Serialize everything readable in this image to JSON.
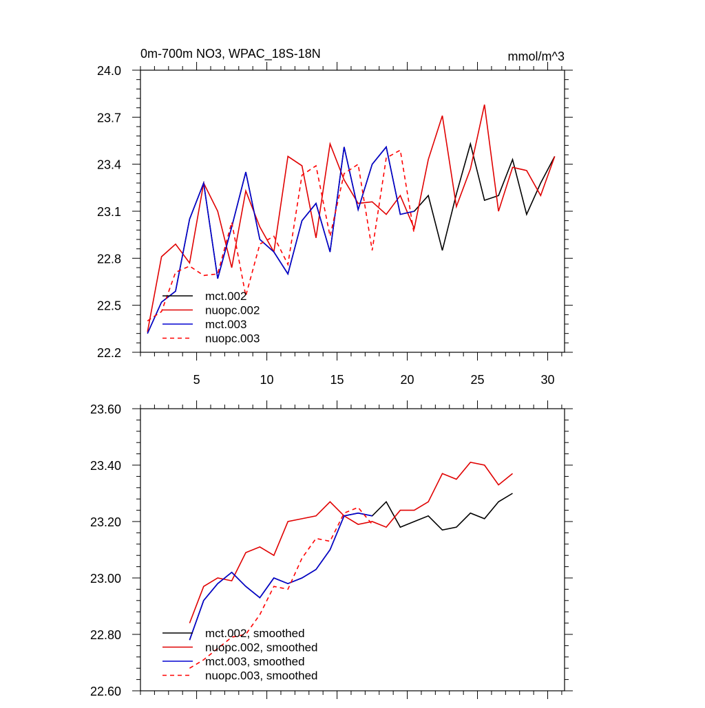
{
  "colors": {
    "mct002": "#000000",
    "nuopc002": "#e00000",
    "mct003": "#0000d0",
    "nuopc003": "#ff0000"
  },
  "chart_data": [
    {
      "type": "line",
      "title_left": "0m-700m NO3, WPAC_18S-18N",
      "title_right": "mmol/m^3",
      "xlabel": "",
      "ylabel": "",
      "xlim": [
        1,
        31.2
      ],
      "ylim": [
        22.2,
        24.0
      ],
      "x_ticks": [
        5,
        10,
        15,
        20,
        25,
        30
      ],
      "x_tick_labels": [
        "5",
        "10",
        "15",
        "20",
        "25",
        "30"
      ],
      "y_ticks": [
        22.2,
        22.5,
        22.8,
        23.1,
        23.4,
        23.7,
        24.0
      ],
      "y_tick_labels": [
        "22.2",
        "22.5",
        "22.8",
        "23.1",
        "23.4",
        "23.7",
        "24.0"
      ],
      "x_minor_step": 1,
      "y_minor_step": 0.06,
      "legend_position": "bottom-left",
      "series": [
        {
          "name": "mct.002",
          "color_key": "mct002",
          "dash": "solid",
          "x": [
            1.5,
            2.5,
            3.5,
            4.5,
            5.5,
            6.5,
            7.5,
            8.5,
            9.5,
            10.5,
            11.5,
            12.5,
            13.5,
            14.5,
            15.5,
            16.5,
            17.5,
            18.5,
            19.5,
            20.5,
            21.5,
            22.5,
            23.5,
            24.5,
            25.5,
            26.5,
            27.5,
            28.5,
            29.5,
            30.5
          ],
          "values": [
            22.32,
            22.52,
            22.59,
            23.05,
            23.28,
            22.67,
            23.0,
            23.35,
            22.92,
            22.84,
            22.7,
            23.04,
            23.15,
            22.84,
            23.51,
            23.11,
            23.4,
            23.51,
            23.08,
            23.1,
            23.2,
            22.85,
            23.21,
            23.53,
            23.17,
            23.2,
            23.43,
            23.08,
            23.28,
            23.45
          ]
        },
        {
          "name": "nuopc.002",
          "color_key": "nuopc002",
          "dash": "solid",
          "x": [
            1.5,
            2.5,
            3.5,
            4.5,
            5.5,
            6.5,
            7.5,
            8.5,
            9.5,
            10.5,
            11.5,
            12.5,
            13.5,
            14.5,
            15.5,
            16.5,
            17.5,
            18.5,
            19.5,
            20.5,
            21.5,
            22.5,
            23.5,
            24.5,
            25.5,
            26.5,
            27.5,
            28.5,
            29.5,
            30.5
          ],
          "values": [
            22.33,
            22.81,
            22.89,
            22.77,
            23.28,
            23.1,
            22.74,
            23.23,
            23.0,
            22.84,
            23.45,
            23.39,
            22.93,
            23.53,
            23.3,
            23.15,
            23.16,
            23.08,
            23.2,
            22.99,
            23.43,
            23.71,
            23.13,
            23.37,
            23.78,
            23.1,
            23.38,
            23.36,
            23.2,
            23.45
          ]
        },
        {
          "name": "mct.003",
          "color_key": "mct003",
          "dash": "solid",
          "x": [
            1.5,
            2.5,
            3.5,
            4.5,
            5.5,
            6.5,
            7.5,
            8.5,
            9.5,
            10.5,
            11.5,
            12.5,
            13.5,
            14.5,
            15.5,
            16.5,
            17.5,
            18.5,
            19.5,
            20.5
          ],
          "values": [
            22.32,
            22.52,
            22.59,
            23.05,
            23.28,
            22.67,
            23.0,
            23.35,
            22.92,
            22.84,
            22.7,
            23.04,
            23.15,
            22.84,
            23.51,
            23.11,
            23.4,
            23.51,
            23.08,
            23.1
          ]
        },
        {
          "name": "nuopc.003",
          "color_key": "nuopc003",
          "dash": "dashed",
          "x": [
            1.5,
            2.5,
            3.5,
            4.5,
            5.5,
            6.5,
            7.5,
            8.5,
            9.5,
            10.5,
            11.5,
            12.5,
            13.5,
            14.5,
            15.5,
            16.5,
            17.5,
            18.5,
            19.5,
            20.5
          ],
          "values": [
            22.4,
            22.46,
            22.71,
            22.75,
            22.69,
            22.7,
            23.03,
            22.56,
            22.89,
            22.94,
            22.76,
            23.33,
            23.39,
            22.94,
            23.34,
            23.4,
            22.85,
            23.44,
            23.49,
            22.95
          ]
        }
      ]
    },
    {
      "type": "line",
      "title_left": "",
      "title_right": "",
      "xlabel": "",
      "ylabel": "",
      "xlim": [
        1,
        31.2
      ],
      "ylim": [
        22.6,
        23.6
      ],
      "x_ticks": [
        5,
        10,
        15,
        20,
        25,
        30
      ],
      "x_tick_labels": [],
      "y_ticks": [
        22.6,
        22.8,
        23.0,
        23.2,
        23.4,
        23.6
      ],
      "y_tick_labels": [
        "22.60",
        "22.80",
        "23.00",
        "23.20",
        "23.40",
        "23.60"
      ],
      "x_minor_step": 1,
      "y_minor_step": 0.04,
      "legend_position": "bottom-left",
      "series": [
        {
          "name": "mct.002, smoothed",
          "color_key": "mct002",
          "dash": "solid",
          "x": [
            4.5,
            5.5,
            6.5,
            7.5,
            8.5,
            9.5,
            10.5,
            11.5,
            12.5,
            13.5,
            14.5,
            15.5,
            16.5,
            17.5,
            18.5,
            19.5,
            20.5,
            21.5,
            22.5,
            23.5,
            24.5,
            25.5,
            26.5,
            27.5
          ],
          "values": [
            22.78,
            22.92,
            22.98,
            23.02,
            22.97,
            22.93,
            23.0,
            22.98,
            23.0,
            23.03,
            23.1,
            23.22,
            23.23,
            23.22,
            23.27,
            23.18,
            23.2,
            23.22,
            23.17,
            23.18,
            23.23,
            23.21,
            23.27,
            23.3
          ]
        },
        {
          "name": "nuopc.002, smoothed",
          "color_key": "nuopc002",
          "dash": "solid",
          "x": [
            4.5,
            5.5,
            6.5,
            7.5,
            8.5,
            9.5,
            10.5,
            11.5,
            12.5,
            13.5,
            14.5,
            15.5,
            16.5,
            17.5,
            18.5,
            19.5,
            20.5,
            21.5,
            22.5,
            23.5,
            24.5,
            25.5,
            26.5,
            27.5
          ],
          "values": [
            22.84,
            22.97,
            23.0,
            22.99,
            23.09,
            23.11,
            23.08,
            23.2,
            23.21,
            23.22,
            23.27,
            23.22,
            23.19,
            23.2,
            23.18,
            23.24,
            23.24,
            23.27,
            23.37,
            23.35,
            23.41,
            23.4,
            23.33,
            23.37
          ]
        },
        {
          "name": "mct.003, smoothed",
          "color_key": "mct003",
          "dash": "solid",
          "x": [
            4.5,
            5.5,
            6.5,
            7.5,
            8.5,
            9.5,
            10.5,
            11.5,
            12.5,
            13.5,
            14.5,
            15.5,
            16.5,
            17.5
          ],
          "values": [
            22.78,
            22.92,
            22.98,
            23.02,
            22.97,
            22.93,
            23.0,
            22.98,
            23.0,
            23.03,
            23.1,
            23.22,
            23.23,
            23.22
          ]
        },
        {
          "name": "nuopc.003, smoothed",
          "color_key": "nuopc003",
          "dash": "dashed",
          "x": [
            4.5,
            5.5,
            6.5,
            7.5,
            8.5,
            9.5,
            10.5,
            11.5,
            12.5,
            13.5,
            14.5,
            15.5,
            16.5,
            17.5
          ],
          "values": [
            22.68,
            22.71,
            22.75,
            22.79,
            22.8,
            22.87,
            22.97,
            22.96,
            23.07,
            23.14,
            23.13,
            23.23,
            23.25,
            23.19
          ]
        }
      ]
    }
  ]
}
